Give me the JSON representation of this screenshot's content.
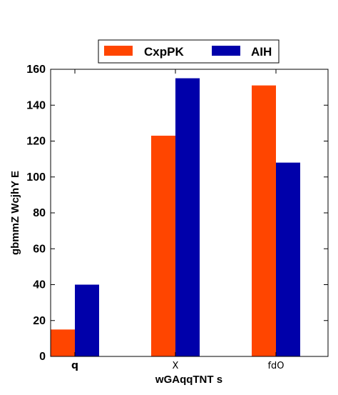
{
  "chart_data": {
    "type": "bar",
    "categories": [
      "q",
      "X",
      "fdO"
    ],
    "series": [
      {
        "name": "CxpPK",
        "values": [
          15,
          123,
          151
        ],
        "color": "#ff4500"
      },
      {
        "name": "AIH",
        "values": [
          40,
          155,
          108
        ],
        "color": "#0000aa"
      }
    ],
    "xlabel": "wGAqqTNT s",
    "ylabel": "gbmmZ WcjhY  E",
    "ylim": [
      0,
      160
    ],
    "yticks": [
      0,
      20,
      40,
      60,
      80,
      100,
      120,
      140,
      160
    ],
    "grid": false,
    "legend_position": "top-center"
  }
}
